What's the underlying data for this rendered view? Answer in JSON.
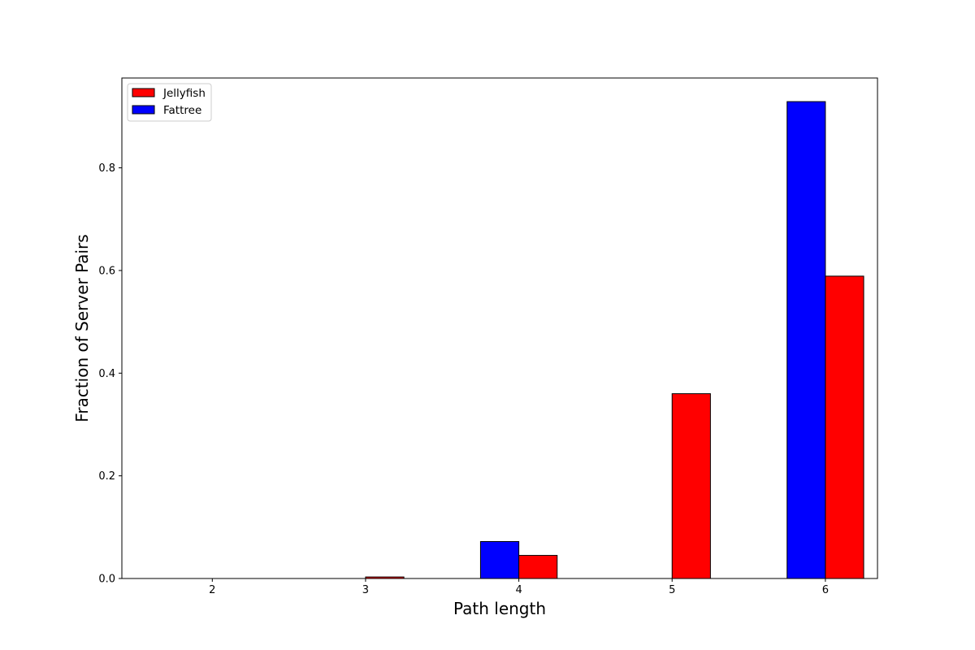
{
  "chart_data": {
    "type": "bar",
    "title": "",
    "xlabel": "Path length",
    "ylabel": "Fraction of Server Pairs",
    "categories": [
      "2",
      "3",
      "4",
      "5",
      "6"
    ],
    "series": [
      {
        "name": "Fattree",
        "color": "#0000ff",
        "values": [
          0.0,
          0.0,
          0.072,
          0.0,
          0.929
        ]
      },
      {
        "name": "Jellyfish",
        "color": "#ff0000",
        "values": [
          0.0,
          0.003,
          0.045,
          0.36,
          0.589
        ]
      }
    ],
    "legend": {
      "placement": "upper-left",
      "entries": [
        {
          "name": "Jellyfish",
          "color": "#ff0000"
        },
        {
          "name": "Fattree",
          "color": "#0000ff"
        }
      ]
    },
    "ylim": [
      0,
      0.975
    ],
    "yticks": [
      "0.0",
      "0.2",
      "0.4",
      "0.6",
      "0.8"
    ],
    "ytick_values": [
      0,
      0.2,
      0.4,
      0.6,
      0.8
    ],
    "grid": false,
    "bar_edge_color": "#000000"
  }
}
